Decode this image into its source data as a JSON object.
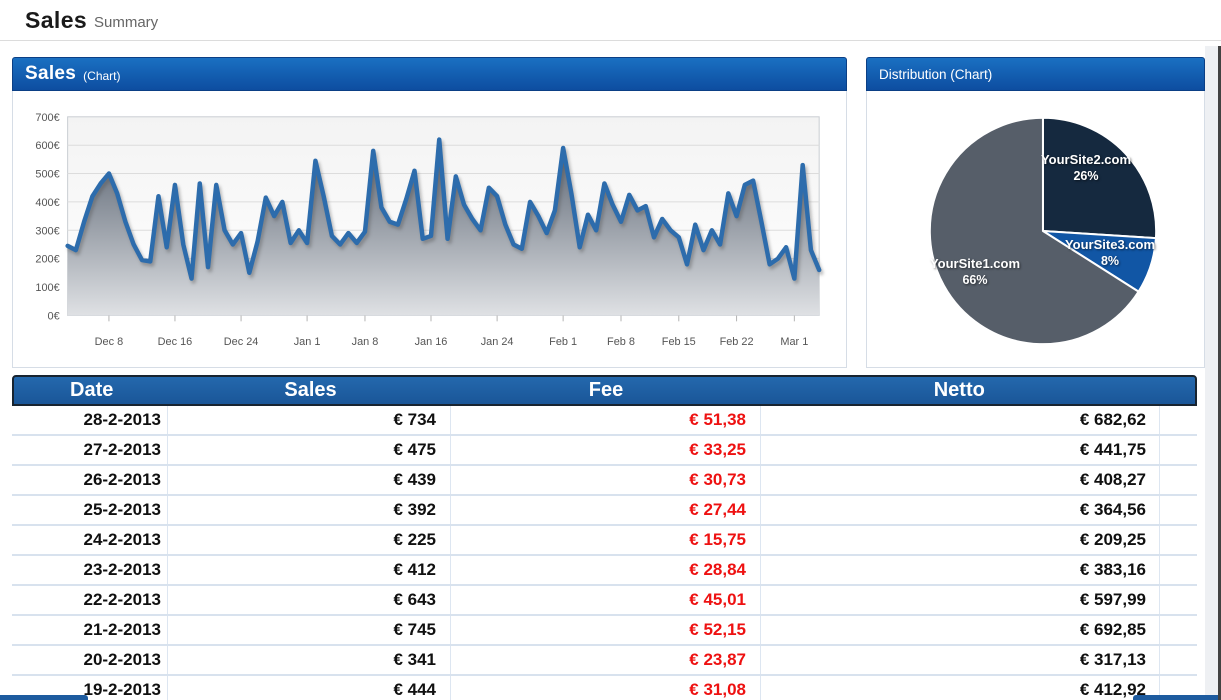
{
  "page": {
    "title": "Sales",
    "subtitle": "Summary"
  },
  "sales_panel": {
    "title": "Sales",
    "suffix": "(Chart)"
  },
  "distribution_panel": {
    "title": "Distribution (Chart)"
  },
  "colors": {
    "panel_header_top": "#1a70c2",
    "panel_header_bottom": "#0d4da0",
    "table_header_blue": "#1d5b9f",
    "fee_red": "#ee1111"
  },
  "chart_data": [
    {
      "type": "area",
      "title": "Sales (Chart)",
      "ylim": [
        0,
        700
      ],
      "y_tick_step": 100,
      "y_tick_suffix": "€",
      "grid": "horizontal",
      "x_range": [
        "Dec 3",
        "Mar 4"
      ],
      "x_ticks": [
        {
          "i": 5,
          "label": "Dec 8"
        },
        {
          "i": 13,
          "label": "Dec 16"
        },
        {
          "i": 21,
          "label": "Dec 24"
        },
        {
          "i": 29,
          "label": "Jan 1"
        },
        {
          "i": 36,
          "label": "Jan 8"
        },
        {
          "i": 44,
          "label": "Jan 16"
        },
        {
          "i": 52,
          "label": "Jan 24"
        },
        {
          "i": 60,
          "label": "Feb 1"
        },
        {
          "i": 67,
          "label": "Feb 8"
        },
        {
          "i": 74,
          "label": "Feb 15"
        },
        {
          "i": 81,
          "label": "Feb 22"
        },
        {
          "i": 88,
          "label": "Mar 1"
        }
      ],
      "values": [
        245,
        230,
        330,
        420,
        465,
        500,
        430,
        330,
        250,
        195,
        190,
        420,
        240,
        460,
        250,
        130,
        465,
        170,
        460,
        300,
        250,
        290,
        150,
        260,
        415,
        350,
        400,
        255,
        300,
        255,
        545,
        420,
        280,
        250,
        290,
        255,
        295,
        580,
        380,
        330,
        320,
        410,
        510,
        270,
        280,
        620,
        270,
        490,
        390,
        340,
        300,
        450,
        420,
        320,
        250,
        235,
        400,
        350,
        290,
        370,
        590,
        430,
        240,
        355,
        300,
        465,
        390,
        330,
        425,
        370,
        385,
        275,
        340,
        300,
        275,
        180,
        320,
        230,
        300,
        250,
        430,
        350,
        460,
        475,
        330,
        180,
        200,
        240,
        130,
        530,
        230,
        160
      ],
      "line_color": "#2d6cac",
      "fill_top": "#57616f",
      "fill_bottom": "#dfe1e4"
    },
    {
      "type": "pie",
      "title": "Distribution (Chart)",
      "slices": [
        {
          "label": "YourSite2.com",
          "pct": 26,
          "pct_text": "26%",
          "color": "#15293f"
        },
        {
          "label": "YourSite3.com",
          "pct": 8,
          "pct_text": "8%",
          "color": "#1156a5"
        },
        {
          "label": "YourSite1.com",
          "pct": 66,
          "pct_text": "66%",
          "color": "#565e69"
        }
      ]
    }
  ],
  "table": {
    "columns": [
      "Date",
      "Sales",
      "Fee",
      "Netto"
    ],
    "fee_color": "#ee1111",
    "rows": [
      {
        "date": "28-2-2013",
        "sales": "€ 734",
        "fee": "€ 51,38",
        "netto": "€ 682,62"
      },
      {
        "date": "27-2-2013",
        "sales": "€ 475",
        "fee": "€ 33,25",
        "netto": "€ 441,75"
      },
      {
        "date": "26-2-2013",
        "sales": "€ 439",
        "fee": "€ 30,73",
        "netto": "€ 408,27"
      },
      {
        "date": "25-2-2013",
        "sales": "€ 392",
        "fee": "€ 27,44",
        "netto": "€ 364,56"
      },
      {
        "date": "24-2-2013",
        "sales": "€ 225",
        "fee": "€ 15,75",
        "netto": "€ 209,25"
      },
      {
        "date": "23-2-2013",
        "sales": "€ 412",
        "fee": "€ 28,84",
        "netto": "€ 383,16"
      },
      {
        "date": "22-2-2013",
        "sales": "€ 643",
        "fee": "€ 45,01",
        "netto": "€ 597,99"
      },
      {
        "date": "21-2-2013",
        "sales": "€ 745",
        "fee": "€ 52,15",
        "netto": "€ 692,85"
      },
      {
        "date": "20-2-2013",
        "sales": "€ 341",
        "fee": "€ 23,87",
        "netto": "€ 317,13"
      },
      {
        "date": "19-2-2013",
        "sales": "€ 444",
        "fee": "€ 31,08",
        "netto": "€ 412,92"
      }
    ]
  }
}
